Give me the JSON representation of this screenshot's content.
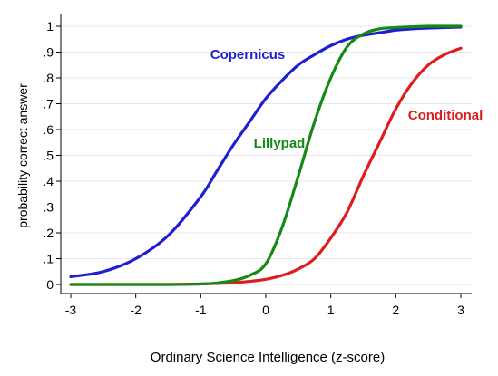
{
  "chart_data": {
    "type": "line",
    "title": "",
    "xlabel": "Ordinary Science Intelligence (z-score)",
    "ylabel": "probability correct answer",
    "xlim": [
      -3,
      3
    ],
    "ylim": [
      0,
      1
    ],
    "x_ticks": [
      -3,
      -2,
      -1,
      0,
      1,
      2,
      3
    ],
    "y_ticks": [
      0,
      0.1,
      0.2,
      0.3,
      0.4,
      0.5,
      0.6,
      0.7,
      0.8,
      0.9,
      1
    ],
    "x_tick_labels": [
      "-3",
      "-2",
      "-1",
      "0",
      "1",
      "2",
      "3"
    ],
    "y_tick_labels": [
      "0",
      ".1",
      ".2",
      ".3",
      ".4",
      ".5",
      ".6",
      ".7",
      ".8",
      ".9",
      "1"
    ],
    "grid": "horizontal",
    "legend": "none",
    "x": [
      -3,
      -2.5,
      -2,
      -1.5,
      -1,
      -0.75,
      -0.5,
      -0.25,
      0,
      0.25,
      0.5,
      0.75,
      1,
      1.25,
      1.5,
      1.75,
      2,
      2.25,
      2.5,
      2.75,
      3
    ],
    "series": [
      {
        "name": "Copernicus",
        "color": "#1f1fd1",
        "values": [
          0.03,
          0.05,
          0.1,
          0.19,
          0.34,
          0.44,
          0.54,
          0.63,
          0.72,
          0.79,
          0.85,
          0.89,
          0.925,
          0.95,
          0.965,
          0.975,
          0.985,
          0.99,
          0.993,
          0.995,
          0.997
        ]
      },
      {
        "name": "Lillypad",
        "color": "#138a13",
        "values": [
          0.0,
          0.0,
          0.0,
          0.0,
          0.002,
          0.006,
          0.015,
          0.035,
          0.08,
          0.22,
          0.42,
          0.63,
          0.8,
          0.92,
          0.97,
          0.99,
          0.995,
          0.998,
          1.0,
          1.0,
          1.0
        ]
      },
      {
        "name": "Conditional",
        "color": "#e01b1b",
        "values": [
          0.0,
          0.0,
          0.0,
          0.0,
          0.002,
          0.004,
          0.007,
          0.012,
          0.02,
          0.035,
          0.06,
          0.1,
          0.18,
          0.28,
          0.42,
          0.55,
          0.68,
          0.78,
          0.85,
          0.89,
          0.915
        ]
      }
    ]
  }
}
